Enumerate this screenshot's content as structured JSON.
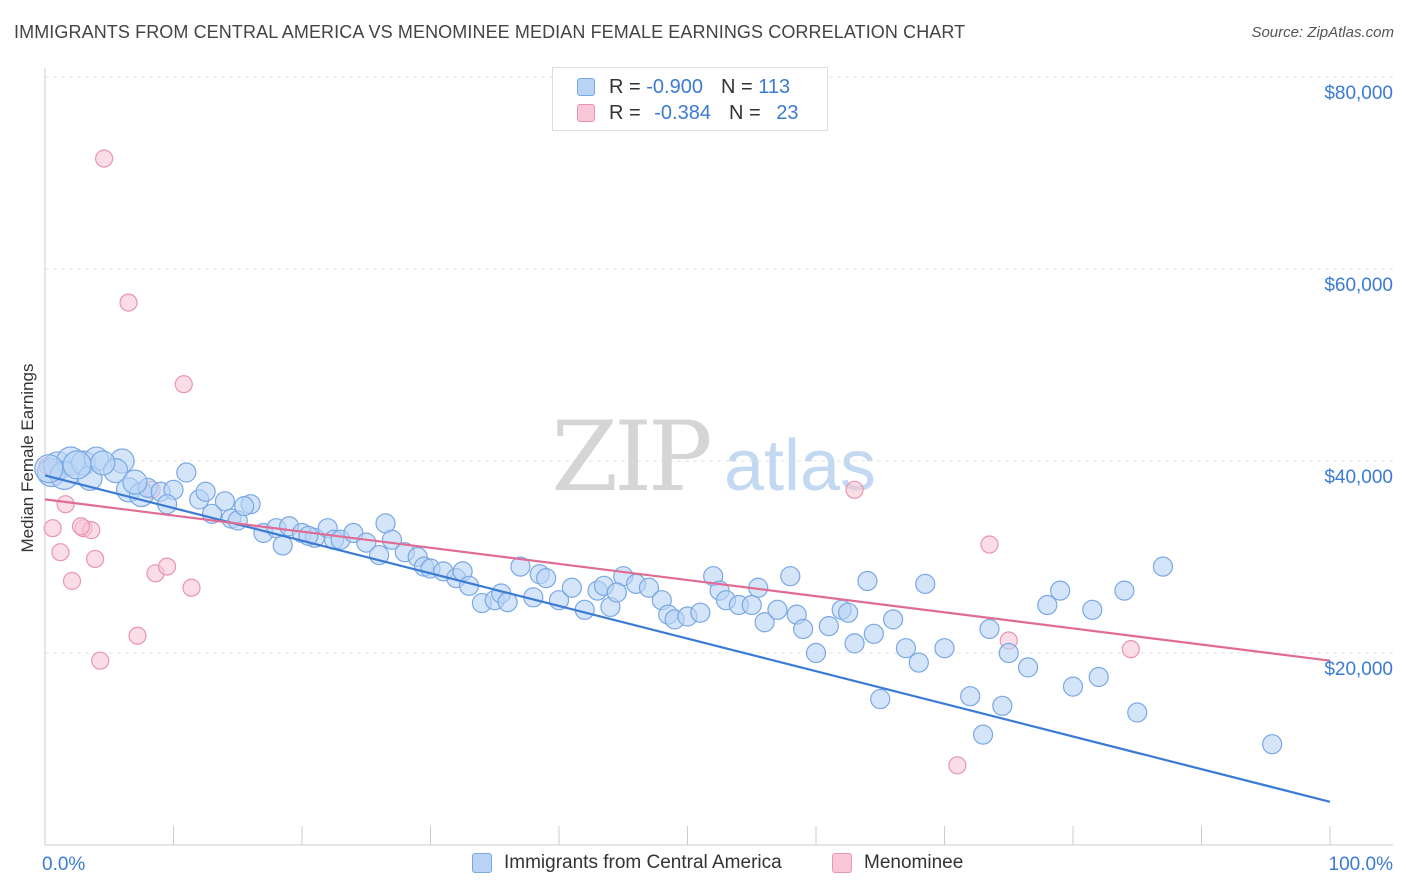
{
  "title": "IMMIGRANTS FROM CENTRAL AMERICA VS MENOMINEE MEDIAN FEMALE EARNINGS CORRELATION CHART",
  "source": "Source: ZipAtlas.com",
  "watermark": {
    "zip": "ZIP",
    "atlas": "atlas"
  },
  "legend": {
    "r_label": "R =",
    "n_label": "N =",
    "series": [
      {
        "name": "Immigrants from Central America",
        "r": "-0.900",
        "n": "113",
        "fill": "#b9d3f5",
        "stroke": "#7aa8e4"
      },
      {
        "name": "Menominee",
        "r": "-0.384",
        "n": "23",
        "fill": "#f8c6d6",
        "stroke": "#e895b2"
      }
    ]
  },
  "chart_data": {
    "type": "scatter",
    "title": "IMMIGRANTS FROM CENTRAL AMERICA VS MENOMINEE MEDIAN FEMALE EARNINGS CORRELATION CHART",
    "xlabel": "",
    "ylabel": "Median Female Earnings",
    "xlim": [
      0,
      100
    ],
    "ylim": [
      0,
      85000
    ],
    "x_tick_labels": [
      "0.0%",
      "100.0%"
    ],
    "y_ticks": [
      20000,
      40000,
      60000,
      80000
    ],
    "y_tick_labels": [
      "$20,000",
      "$40,000",
      "$60,000",
      "$80,000"
    ],
    "grid": true,
    "legend_position": "top-center",
    "colors": {
      "blue_line": "#3b7bd4",
      "pink_line": "#e06c94",
      "axis_text": "#3b7bd4"
    },
    "series": [
      {
        "name": "Immigrants from Central America",
        "color": "#7aa8e4",
        "trend": {
          "x": [
            0,
            100
          ],
          "y": [
            38500,
            4500
          ]
        },
        "points": [
          [
            0.5,
            38800
          ],
          [
            1.0,
            39500
          ],
          [
            2.0,
            40000
          ],
          [
            1.5,
            38500
          ],
          [
            3.0,
            39800
          ],
          [
            4.0,
            40200
          ],
          [
            6.0,
            40000
          ],
          [
            3.5,
            38200
          ],
          [
            5.5,
            39000
          ],
          [
            6.5,
            37000
          ],
          [
            7.5,
            36500
          ],
          [
            8.0,
            37200
          ],
          [
            9.0,
            36800
          ],
          [
            10.0,
            37000
          ],
          [
            11.0,
            38800
          ],
          [
            9.5,
            35500
          ],
          [
            12.0,
            36000
          ],
          [
            12.5,
            36800
          ],
          [
            13.0,
            34500
          ],
          [
            14.0,
            35800
          ],
          [
            14.5,
            34000
          ],
          [
            15.0,
            33800
          ],
          [
            16.0,
            35500
          ],
          [
            17.0,
            32500
          ],
          [
            18.0,
            33000
          ],
          [
            18.5,
            31200
          ],
          [
            19.0,
            33200
          ],
          [
            20.0,
            32500
          ],
          [
            21.0,
            32000
          ],
          [
            22.0,
            33000
          ],
          [
            22.5,
            31800
          ],
          [
            23.0,
            31800
          ],
          [
            24.0,
            32500
          ],
          [
            25.0,
            31500
          ],
          [
            26.0,
            30200
          ],
          [
            26.5,
            33500
          ],
          [
            27.0,
            31800
          ],
          [
            28.0,
            30500
          ],
          [
            29.0,
            30000
          ],
          [
            29.5,
            29000
          ],
          [
            30.0,
            28800
          ],
          [
            31.0,
            28500
          ],
          [
            32.0,
            27800
          ],
          [
            32.5,
            28500
          ],
          [
            33.0,
            27000
          ],
          [
            34.0,
            25200
          ],
          [
            35.0,
            25500
          ],
          [
            35.5,
            26200
          ],
          [
            37.0,
            29000
          ],
          [
            38.0,
            25800
          ],
          [
            38.5,
            28200
          ],
          [
            39.0,
            27800
          ],
          [
            40.0,
            25500
          ],
          [
            41.0,
            26800
          ],
          [
            42.0,
            24500
          ],
          [
            43.0,
            26500
          ],
          [
            43.5,
            27000
          ],
          [
            44.0,
            24800
          ],
          [
            45.0,
            28000
          ],
          [
            46.0,
            27200
          ],
          [
            47.0,
            26800
          ],
          [
            48.0,
            25500
          ],
          [
            48.5,
            24000
          ],
          [
            49.0,
            23500
          ],
          [
            50.0,
            23800
          ],
          [
            51.0,
            24200
          ],
          [
            52.0,
            28000
          ],
          [
            52.5,
            26500
          ],
          [
            53.0,
            25500
          ],
          [
            54.0,
            25000
          ],
          [
            55.0,
            25000
          ],
          [
            55.5,
            26800
          ],
          [
            56.0,
            23200
          ],
          [
            57.0,
            24500
          ],
          [
            58.0,
            28000
          ],
          [
            58.5,
            24000
          ],
          [
            59.0,
            22500
          ],
          [
            60.0,
            20000
          ],
          [
            61.0,
            22800
          ],
          [
            62.0,
            24500
          ],
          [
            62.5,
            24200
          ],
          [
            63.0,
            21000
          ],
          [
            64.0,
            27500
          ],
          [
            64.5,
            22000
          ],
          [
            65.0,
            15200
          ],
          [
            66.0,
            23500
          ],
          [
            67.0,
            20500
          ],
          [
            68.0,
            19000
          ],
          [
            68.5,
            27200
          ],
          [
            70.0,
            20500
          ],
          [
            72.0,
            15500
          ],
          [
            73.0,
            11500
          ],
          [
            73.5,
            22500
          ],
          [
            74.5,
            14500
          ],
          [
            75.0,
            20000
          ],
          [
            76.5,
            18500
          ],
          [
            78.0,
            25000
          ],
          [
            79.0,
            26500
          ],
          [
            80.0,
            16500
          ],
          [
            81.5,
            24500
          ],
          [
            82.0,
            17500
          ],
          [
            84.0,
            26500
          ],
          [
            85.0,
            13800
          ],
          [
            87.0,
            29000
          ],
          [
            95.5,
            10500
          ],
          [
            0.3,
            39200
          ],
          [
            2.5,
            39600
          ],
          [
            4.5,
            39800
          ],
          [
            7.0,
            37800
          ],
          [
            15.5,
            35300
          ],
          [
            20.5,
            32200
          ],
          [
            36.0,
            25300
          ],
          [
            44.5,
            26300
          ]
        ]
      },
      {
        "name": "Menominee",
        "color": "#e895b2",
        "trend": {
          "x": [
            0,
            100
          ],
          "y": [
            36000,
            19200
          ]
        },
        "points": [
          [
            4.6,
            71500
          ],
          [
            6.5,
            56500
          ],
          [
            10.8,
            48000
          ],
          [
            0.6,
            33000
          ],
          [
            1.2,
            30500
          ],
          [
            1.6,
            35500
          ],
          [
            2.1,
            27500
          ],
          [
            3.0,
            33000
          ],
          [
            3.6,
            32800
          ],
          [
            3.9,
            29800
          ],
          [
            4.3,
            19200
          ],
          [
            7.2,
            21800
          ],
          [
            8.6,
            28300
          ],
          [
            9.5,
            29000
          ],
          [
            11.4,
            26800
          ],
          [
            8.3,
            37000
          ],
          [
            63.0,
            37000
          ],
          [
            73.5,
            31300
          ],
          [
            75.0,
            21300
          ],
          [
            71.0,
            8300
          ],
          [
            84.5,
            20400
          ],
          [
            0.2,
            39500
          ],
          [
            2.8,
            33200
          ]
        ]
      }
    ]
  }
}
